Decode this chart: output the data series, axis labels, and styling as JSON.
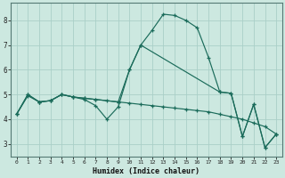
{
  "xlabel": "Humidex (Indice chaleur)",
  "background_color": "#cce8e0",
  "grid_color": "#aacfc8",
  "line_color": "#1a6b5a",
  "xlim": [
    -0.5,
    23.5
  ],
  "ylim": [
    2.5,
    8.7
  ],
  "yticks": [
    3,
    4,
    5,
    6,
    7,
    8
  ],
  "xticks": [
    0,
    1,
    2,
    3,
    4,
    5,
    6,
    7,
    8,
    9,
    10,
    11,
    12,
    13,
    14,
    15,
    16,
    17,
    18,
    19,
    20,
    21,
    22,
    23
  ],
  "series1_x": [
    0,
    1,
    2,
    3,
    4,
    5,
    6,
    7,
    8,
    9,
    10,
    11,
    12,
    13,
    14,
    15,
    16,
    17,
    18,
    19,
    20,
    21,
    22,
    23
  ],
  "series1_y": [
    4.2,
    5.0,
    4.7,
    4.75,
    5.0,
    4.9,
    4.8,
    4.55,
    4.0,
    4.5,
    6.0,
    7.0,
    7.6,
    8.25,
    8.2,
    8.0,
    7.7,
    6.5,
    5.1,
    5.05,
    3.3,
    4.6,
    2.85,
    3.4
  ],
  "series2_x": [
    0,
    1,
    2,
    3,
    4,
    5,
    6,
    7,
    8,
    9,
    10,
    11,
    12,
    13,
    14,
    15,
    16,
    17,
    18,
    19,
    20,
    21,
    22,
    23
  ],
  "series2_y": [
    4.2,
    4.95,
    4.7,
    4.75,
    5.0,
    4.9,
    4.85,
    4.8,
    4.75,
    4.7,
    4.65,
    4.6,
    4.55,
    4.5,
    4.45,
    4.4,
    4.35,
    4.3,
    4.2,
    4.1,
    4.0,
    3.85,
    3.7,
    3.4
  ],
  "series3_x": [
    0,
    1,
    2,
    3,
    4,
    5,
    6,
    7,
    9,
    10,
    11,
    18,
    19,
    20,
    21,
    22,
    23
  ],
  "series3_y": [
    4.2,
    5.0,
    4.7,
    4.75,
    5.0,
    4.9,
    4.85,
    4.8,
    4.7,
    6.0,
    7.0,
    5.1,
    5.05,
    3.3,
    4.6,
    2.85,
    3.4
  ]
}
